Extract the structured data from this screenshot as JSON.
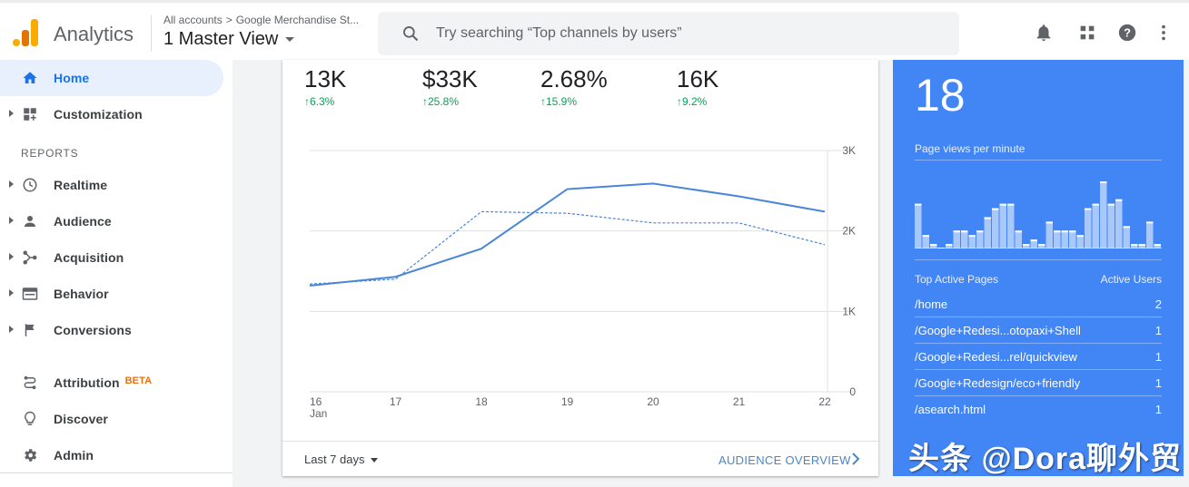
{
  "header": {
    "app_name": "Analytics",
    "breadcrumb": {
      "root": "All accounts",
      "separator": ">",
      "property": "Google Merchandise St..."
    },
    "view": "1 Master View",
    "search_placeholder": "Try searching “Top channels by users”",
    "icons": [
      "bell-icon",
      "apps-grid-icon",
      "help-icon",
      "more-vert-icon"
    ]
  },
  "sidebar": {
    "top_items": [
      {
        "label": "Home",
        "icon": "home-icon",
        "active": true
      },
      {
        "label": "Customization",
        "icon": "dashboard-icon"
      }
    ],
    "section_label": "REPORTS",
    "report_items": [
      {
        "label": "Realtime",
        "icon": "clock-icon"
      },
      {
        "label": "Audience",
        "icon": "person-icon"
      },
      {
        "label": "Acquisition",
        "icon": "acquisition-icon"
      },
      {
        "label": "Behavior",
        "icon": "behavior-icon"
      },
      {
        "label": "Conversions",
        "icon": "flag-icon"
      }
    ],
    "bottom_items": [
      {
        "label": "Attribution",
        "badge": "BETA",
        "icon": "attribution-icon"
      },
      {
        "label": "Discover",
        "icon": "lightbulb-icon"
      },
      {
        "label": "Admin",
        "icon": "gear-icon"
      }
    ]
  },
  "overview": {
    "metrics": [
      {
        "value": "13K",
        "delta": "6.3%"
      },
      {
        "value": "$33K",
        "delta": "25.8%"
      },
      {
        "value": "2.68%",
        "delta": "15.9%"
      },
      {
        "value": "16K",
        "delta": "9.2%"
      }
    ],
    "date_range": "Last 7 days",
    "overview_link": "AUDIENCE OVERVIEW"
  },
  "chart_data": {
    "type": "line",
    "x": [
      "16",
      "17",
      "18",
      "19",
      "20",
      "21",
      "22"
    ],
    "x_sublabel": "Jan",
    "y_ticks": [
      "3K",
      "2K",
      "1K",
      "0"
    ],
    "ylim": [
      0,
      3000
    ],
    "series": [
      {
        "style": "solid",
        "values": [
          1320,
          1430,
          1780,
          2520,
          2590,
          2430,
          2240
        ]
      },
      {
        "style": "dashed",
        "values": [
          1340,
          1400,
          2240,
          2220,
          2100,
          2100,
          1830
        ]
      }
    ],
    "grid": true,
    "colors": {
      "line": "#4a86d8",
      "grid": "#e0e0e0"
    }
  },
  "realtime": {
    "active_users": "18",
    "pageviews_label": "Page views per minute",
    "histogram": [
      10,
      3,
      1,
      0,
      1,
      4,
      4,
      3,
      4,
      7,
      9,
      10,
      10,
      4,
      1,
      2,
      1,
      6,
      4,
      4,
      4,
      3,
      9,
      10,
      15,
      10,
      11,
      5,
      1,
      1,
      6,
      1
    ],
    "table_header": {
      "left": "Top Active Pages",
      "right": "Active Users"
    },
    "rows": [
      {
        "page": "/home",
        "users": "2"
      },
      {
        "page": "/Google+Redesi...otopaxi+Shell",
        "users": "1"
      },
      {
        "page": "/Google+Redesi...rel/quickview",
        "users": "1"
      },
      {
        "page": "/Google+Redesign/eco+friendly",
        "users": "1"
      },
      {
        "page": "/asearch.html",
        "users": "1"
      }
    ],
    "bg_color": "#4285f4"
  },
  "watermark": "头条 @Dora聊外贸"
}
